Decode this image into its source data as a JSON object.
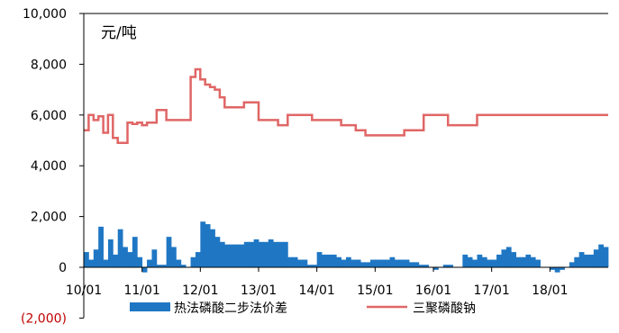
{
  "chart_data": {
    "type": "bar+line",
    "unit_label": "元/吨",
    "ylim": [
      -2000,
      10000
    ],
    "y_ticks": [
      "10,000",
      "8,000",
      "6,000",
      "4,000",
      "2,000",
      "0",
      "(2,000)"
    ],
    "y_tick_values": [
      10000,
      8000,
      6000,
      4000,
      2000,
      0,
      -2000
    ],
    "x_ticks": [
      "10/01",
      "11/01",
      "12/01",
      "13/01",
      "14/01",
      "15/01",
      "16/01",
      "17/01",
      "18/01"
    ],
    "x_range": [
      "2010-01",
      "2018-12"
    ],
    "grid": false,
    "legend_position": "bottom",
    "colors": {
      "bar": "#1f77c4",
      "line": "#e06666",
      "negative_tick": "#c00000",
      "axis": "#000000"
    },
    "series": [
      {
        "name": "热法磷酸二步法价差",
        "kind": "bar",
        "x": [
          "2010-01",
          "2010-02",
          "2010-03",
          "2010-04",
          "2010-05",
          "2010-06",
          "2010-07",
          "2010-08",
          "2010-09",
          "2010-10",
          "2010-11",
          "2010-12",
          "2011-01",
          "2011-02",
          "2011-03",
          "2011-04",
          "2011-05",
          "2011-06",
          "2011-07",
          "2011-08",
          "2011-09",
          "2011-10",
          "2011-11",
          "2011-12",
          "2012-01",
          "2012-02",
          "2012-03",
          "2012-04",
          "2012-05",
          "2012-06",
          "2012-07",
          "2012-08",
          "2012-09",
          "2012-10",
          "2012-11",
          "2012-12",
          "2013-01",
          "2013-02",
          "2013-03",
          "2013-04",
          "2013-05",
          "2013-06",
          "2013-07",
          "2013-08",
          "2013-09",
          "2013-10",
          "2013-11",
          "2013-12",
          "2014-01",
          "2014-02",
          "2014-03",
          "2014-04",
          "2014-05",
          "2014-06",
          "2014-07",
          "2014-08",
          "2014-09",
          "2014-10",
          "2014-11",
          "2014-12",
          "2015-01",
          "2015-02",
          "2015-03",
          "2015-04",
          "2015-05",
          "2015-06",
          "2015-07",
          "2015-08",
          "2015-09",
          "2015-10",
          "2015-11",
          "2015-12",
          "2016-01",
          "2016-02",
          "2016-03",
          "2016-04",
          "2016-05",
          "2016-06",
          "2016-07",
          "2016-08",
          "2016-09",
          "2016-10",
          "2016-11",
          "2016-12",
          "2017-01",
          "2017-02",
          "2017-03",
          "2017-04",
          "2017-05",
          "2017-06",
          "2017-07",
          "2017-08",
          "2017-09",
          "2017-10",
          "2017-11",
          "2017-12",
          "2018-01",
          "2018-02",
          "2018-03",
          "2018-04",
          "2018-05",
          "2018-06",
          "2018-07",
          "2018-08",
          "2018-09",
          "2018-10",
          "2018-11",
          "2018-12"
        ],
        "values": [
          600,
          300,
          700,
          1600,
          300,
          1100,
          500,
          1500,
          800,
          600,
          1200,
          400,
          -200,
          300,
          700,
          100,
          100,
          1200,
          800,
          300,
          100,
          0,
          400,
          600,
          1800,
          1700,
          1500,
          1200,
          1000,
          900,
          900,
          900,
          900,
          1000,
          1000,
          1100,
          1000,
          1000,
          1100,
          1000,
          1000,
          1000,
          400,
          400,
          300,
          300,
          100,
          100,
          600,
          500,
          500,
          500,
          400,
          300,
          400,
          300,
          300,
          200,
          200,
          300,
          300,
          300,
          300,
          400,
          300,
          300,
          300,
          200,
          200,
          100,
          100,
          0,
          -100,
          0,
          100,
          100,
          0,
          0,
          500,
          400,
          300,
          500,
          400,
          300,
          300,
          500,
          700,
          800,
          600,
          400,
          400,
          500,
          400,
          300,
          0,
          0,
          -100,
          -200,
          -100,
          0,
          200,
          400,
          600,
          500,
          500,
          700,
          900,
          800
        ]
      },
      {
        "name": "三聚磷酸钠",
        "kind": "line",
        "x": [
          "2010-01",
          "2010-02",
          "2010-03",
          "2010-04",
          "2010-05",
          "2010-06",
          "2010-07",
          "2010-08",
          "2010-09",
          "2010-10",
          "2010-11",
          "2010-12",
          "2011-01",
          "2011-02",
          "2011-03",
          "2011-04",
          "2011-05",
          "2011-06",
          "2011-07",
          "2011-08",
          "2011-09",
          "2011-10",
          "2011-11",
          "2011-12",
          "2012-01",
          "2012-02",
          "2012-03",
          "2012-04",
          "2012-05",
          "2012-06",
          "2012-07",
          "2012-08",
          "2012-09",
          "2012-10",
          "2012-11",
          "2012-12",
          "2013-01",
          "2013-02",
          "2013-03",
          "2013-04",
          "2013-05",
          "2013-06",
          "2013-07",
          "2013-08",
          "2013-09",
          "2013-10",
          "2013-11",
          "2013-12",
          "2014-01",
          "2014-02",
          "2014-03",
          "2014-04",
          "2014-05",
          "2014-06",
          "2014-07",
          "2014-08",
          "2014-09",
          "2014-10",
          "2014-11",
          "2014-12",
          "2015-01",
          "2015-02",
          "2015-03",
          "2015-04",
          "2015-05",
          "2015-06",
          "2015-07",
          "2015-08",
          "2015-09",
          "2015-10",
          "2015-11",
          "2015-12",
          "2016-01",
          "2016-02",
          "2016-03",
          "2016-04",
          "2016-05",
          "2016-06",
          "2016-07",
          "2016-08",
          "2016-09",
          "2016-10",
          "2016-11",
          "2016-12",
          "2017-01",
          "2017-02",
          "2017-03",
          "2017-04",
          "2017-05",
          "2017-06",
          "2017-07",
          "2017-08",
          "2017-09",
          "2017-10",
          "2017-11",
          "2017-12",
          "2018-01",
          "2018-02",
          "2018-03",
          "2018-04",
          "2018-05",
          "2018-06",
          "2018-07",
          "2018-08",
          "2018-09",
          "2018-10",
          "2018-11",
          "2018-12"
        ],
        "values": [
          5400,
          6000,
          5800,
          5950,
          5300,
          6000,
          5100,
          4900,
          4900,
          5700,
          5650,
          5700,
          5600,
          5700,
          5700,
          6200,
          6200,
          5800,
          5800,
          5800,
          5800,
          5800,
          7500,
          7800,
          7400,
          7200,
          7100,
          7000,
          6700,
          6300,
          6300,
          6300,
          6300,
          6500,
          6500,
          6500,
          5800,
          5800,
          5800,
          5800,
          5600,
          5600,
          6000,
          6000,
          6000,
          6000,
          6000,
          5800,
          5800,
          5800,
          5800,
          5800,
          5800,
          5600,
          5600,
          5600,
          5400,
          5400,
          5200,
          5200,
          5200,
          5200,
          5200,
          5200,
          5200,
          5200,
          5400,
          5400,
          5400,
          5400,
          6000,
          6000,
          6000,
          6000,
          6000,
          5600,
          5600,
          5600,
          5600,
          5600,
          5600,
          6000,
          6000,
          6000,
          6000,
          6000,
          6000,
          6000,
          6000,
          6000,
          6000,
          6000,
          6000,
          6000,
          6000,
          6000,
          6000,
          6000,
          6000,
          6000,
          6000,
          6000,
          6000,
          6000,
          6000,
          6000,
          6000,
          6000
        ]
      }
    ]
  }
}
